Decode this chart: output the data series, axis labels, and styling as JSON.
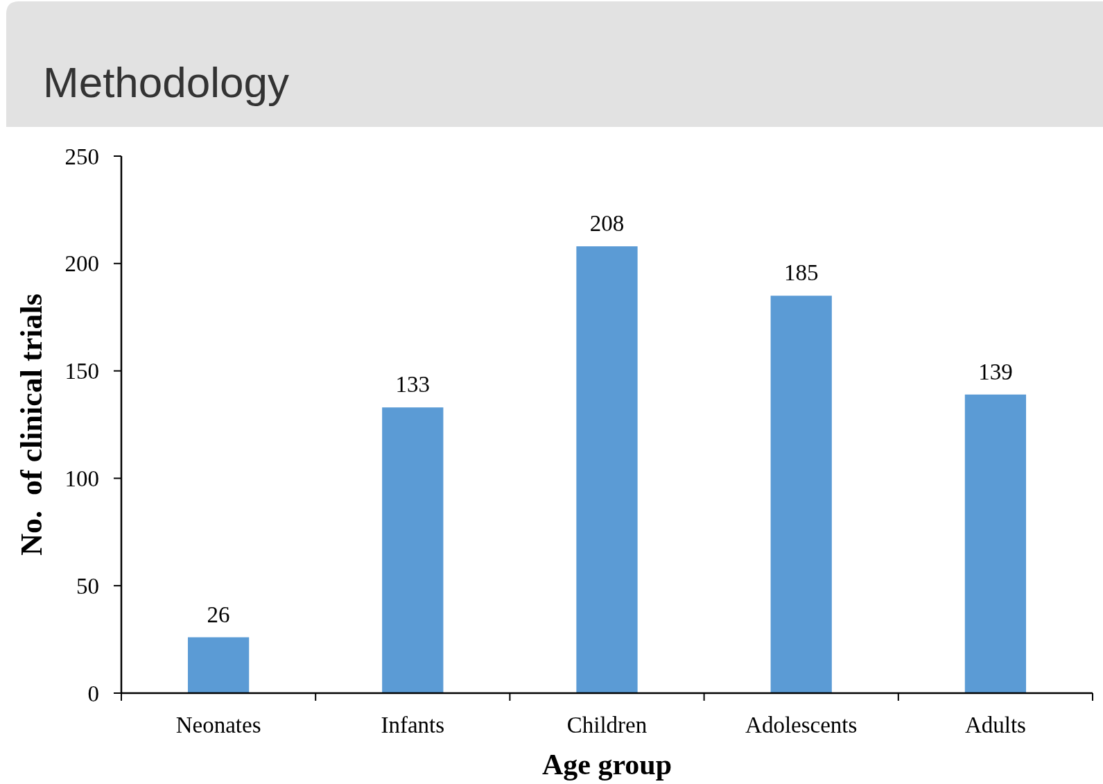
{
  "chart_data": {
    "type": "bar",
    "title": "Methodology",
    "xlabel": "Age group",
    "ylabel": "No.  of clinical trials",
    "categories": [
      "Neonates",
      "Infants",
      "Children",
      "Adolescents",
      "Adults"
    ],
    "values": [
      26,
      133,
      208,
      185,
      139
    ],
    "color": "#5b9bd5",
    "ylim": [
      0,
      250
    ],
    "yticks": [
      0,
      50,
      100,
      150,
      200,
      250
    ],
    "grid": false,
    "data_labels": true
  }
}
